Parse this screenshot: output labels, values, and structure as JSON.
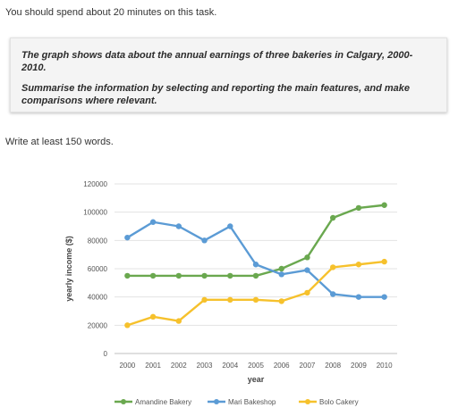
{
  "page": {
    "intro": "You should spend about 20 minutes on this task.",
    "task_lines": [
      "The graph shows data about the annual earnings of three bakeries in Calgary, 2000-2010.",
      "Summarise the information by selecting and reporting the main features, and make comparisons where relevant."
    ],
    "write_note": "Write at least 150 words."
  },
  "chart_data": {
    "type": "line",
    "title": "",
    "xlabel": "year",
    "ylabel": "yearly income ($)",
    "x": [
      "2000",
      "2001",
      "2002",
      "2003",
      "2004",
      "2005",
      "2006",
      "2007",
      "2008",
      "2009",
      "2010"
    ],
    "ylim": [
      0,
      120000
    ],
    "yticks": [
      0,
      20000,
      40000,
      60000,
      80000,
      100000,
      120000
    ],
    "grid": "horizontal",
    "legend": "bottom",
    "series": [
      {
        "name": "Amandine Bakery",
        "color": "#6aa84f",
        "values": [
          55000,
          55000,
          55000,
          55000,
          55000,
          55000,
          60000,
          68000,
          96000,
          103000,
          105000
        ]
      },
      {
        "name": "Mari Bakeshop",
        "color": "#5b9bd5",
        "values": [
          82000,
          93000,
          90000,
          80000,
          90000,
          63000,
          56000,
          59000,
          42000,
          40000,
          40000
        ]
      },
      {
        "name": "Bolo Cakery",
        "color": "#f6c12c",
        "values": [
          20000,
          26000,
          23000,
          38000,
          38000,
          38000,
          37000,
          43000,
          61000,
          63000,
          65000
        ]
      }
    ]
  }
}
